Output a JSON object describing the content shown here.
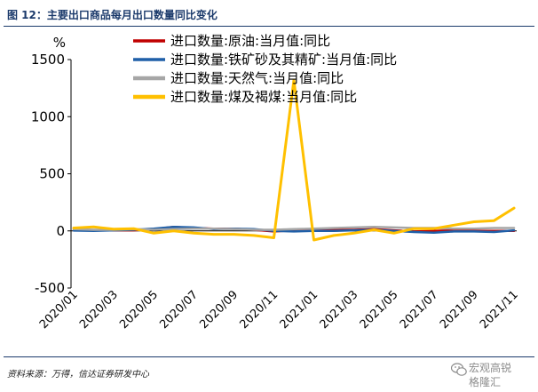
{
  "figure": {
    "title": "图 12：主要出口商品每月出口数量同比变化",
    "source": "资料来源：万得，信达证券研发中心"
  },
  "watermark": {
    "line1": "宏观高锐",
    "line2": "格隆汇",
    "logo_icon": "wechat-logo-icon"
  },
  "chart_data": {
    "type": "line",
    "ylabel": "%",
    "ylim": [
      -500,
      1500
    ],
    "yticks": [
      1500,
      1000,
      500,
      0,
      -500
    ],
    "xtick_labels": [
      "2020/01",
      "2020/03",
      "2020/05",
      "2020/07",
      "2020/09",
      "2020/11",
      "2021/01",
      "2021/03",
      "2021/05",
      "2021/07",
      "2021/09",
      "2021/11"
    ],
    "x": [
      "2020/01",
      "2020/02",
      "2020/03",
      "2020/04",
      "2020/05",
      "2020/06",
      "2020/07",
      "2020/08",
      "2020/09",
      "2020/10",
      "2020/11",
      "2020/12",
      "2021/01",
      "2021/02",
      "2021/03",
      "2021/04",
      "2021/05",
      "2021/06",
      "2021/07",
      "2021/08",
      "2021/09",
      "2021/10",
      "2021/11"
    ],
    "legend_position": "top-left",
    "grid": false,
    "series": [
      {
        "name": "进口数量:原油:当月值:同比",
        "color": "#c00000",
        "values": [
          5,
          8,
          5,
          5,
          15,
          35,
          25,
          20,
          20,
          10,
          -5,
          5,
          5,
          10,
          10,
          15,
          5,
          -5,
          0,
          5,
          0,
          0,
          0
        ]
      },
      {
        "name": "进口数量:铁矿砂及其精矿:当月值:同比",
        "color": "#1f5fa8",
        "values": [
          3,
          0,
          5,
          10,
          20,
          35,
          30,
          15,
          20,
          15,
          0,
          -5,
          0,
          0,
          5,
          10,
          0,
          -10,
          -15,
          -5,
          -5,
          -10,
          5
        ]
      },
      {
        "name": "进口数量:天然气:当月值:同比",
        "color": "#a6a6a6",
        "values": [
          15,
          10,
          10,
          15,
          10,
          15,
          20,
          20,
          15,
          10,
          10,
          15,
          20,
          25,
          30,
          35,
          30,
          25,
          25,
          20,
          20,
          25,
          25
        ]
      },
      {
        "name": "进口数量:煤及褐煤:当月值:同比",
        "color": "#ffc000",
        "values": [
          25,
          35,
          15,
          20,
          -20,
          0,
          -20,
          -30,
          -30,
          -40,
          -60,
          1320,
          -80,
          -40,
          -20,
          10,
          -20,
          20,
          20,
          50,
          80,
          90,
          200
        ]
      }
    ]
  }
}
